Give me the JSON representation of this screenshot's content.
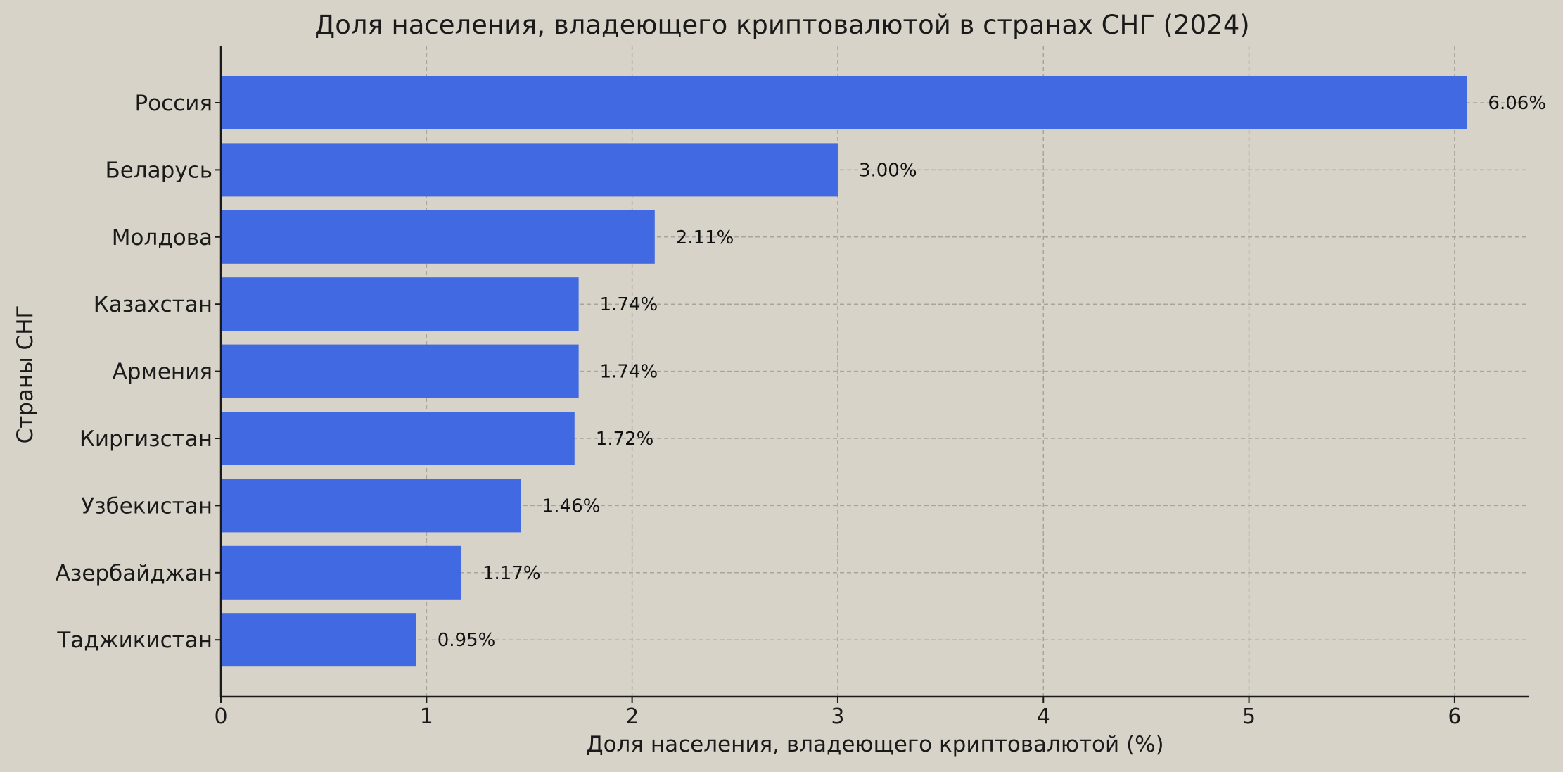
{
  "chart_data": {
    "type": "bar",
    "orientation": "horizontal",
    "title": "Доля населения, владеющего криптовалютой в странах СНГ (2024)",
    "xlabel": "Доля населения, владеющего криптовалютой (%)",
    "ylabel": "Страны СНГ",
    "categories": [
      "Россия",
      "Беларусь",
      "Молдова",
      "Казахстан",
      "Армения",
      "Киргизстан",
      "Узбекистан",
      "Азербайджан",
      "Таджикистан"
    ],
    "values": [
      6.06,
      3.0,
      2.11,
      1.74,
      1.74,
      1.72,
      1.46,
      1.17,
      0.95
    ],
    "value_labels": [
      "6.06%",
      "3.00%",
      "2.11%",
      "1.74%",
      "1.74%",
      "1.72%",
      "1.46%",
      "1.17%",
      "0.95%"
    ],
    "xlim": [
      0,
      6.363
    ],
    "xticks": [
      0,
      1,
      2,
      3,
      4,
      5,
      6
    ],
    "xtick_labels": [
      "0",
      "1",
      "2",
      "3",
      "4",
      "5",
      "6"
    ],
    "grid": true,
    "colors": {
      "background": "#d8d3c8",
      "bar": "#4169e1",
      "axis": "#1a1a1a",
      "grid": "#a8a49b",
      "text": "#1a1a1a"
    }
  }
}
